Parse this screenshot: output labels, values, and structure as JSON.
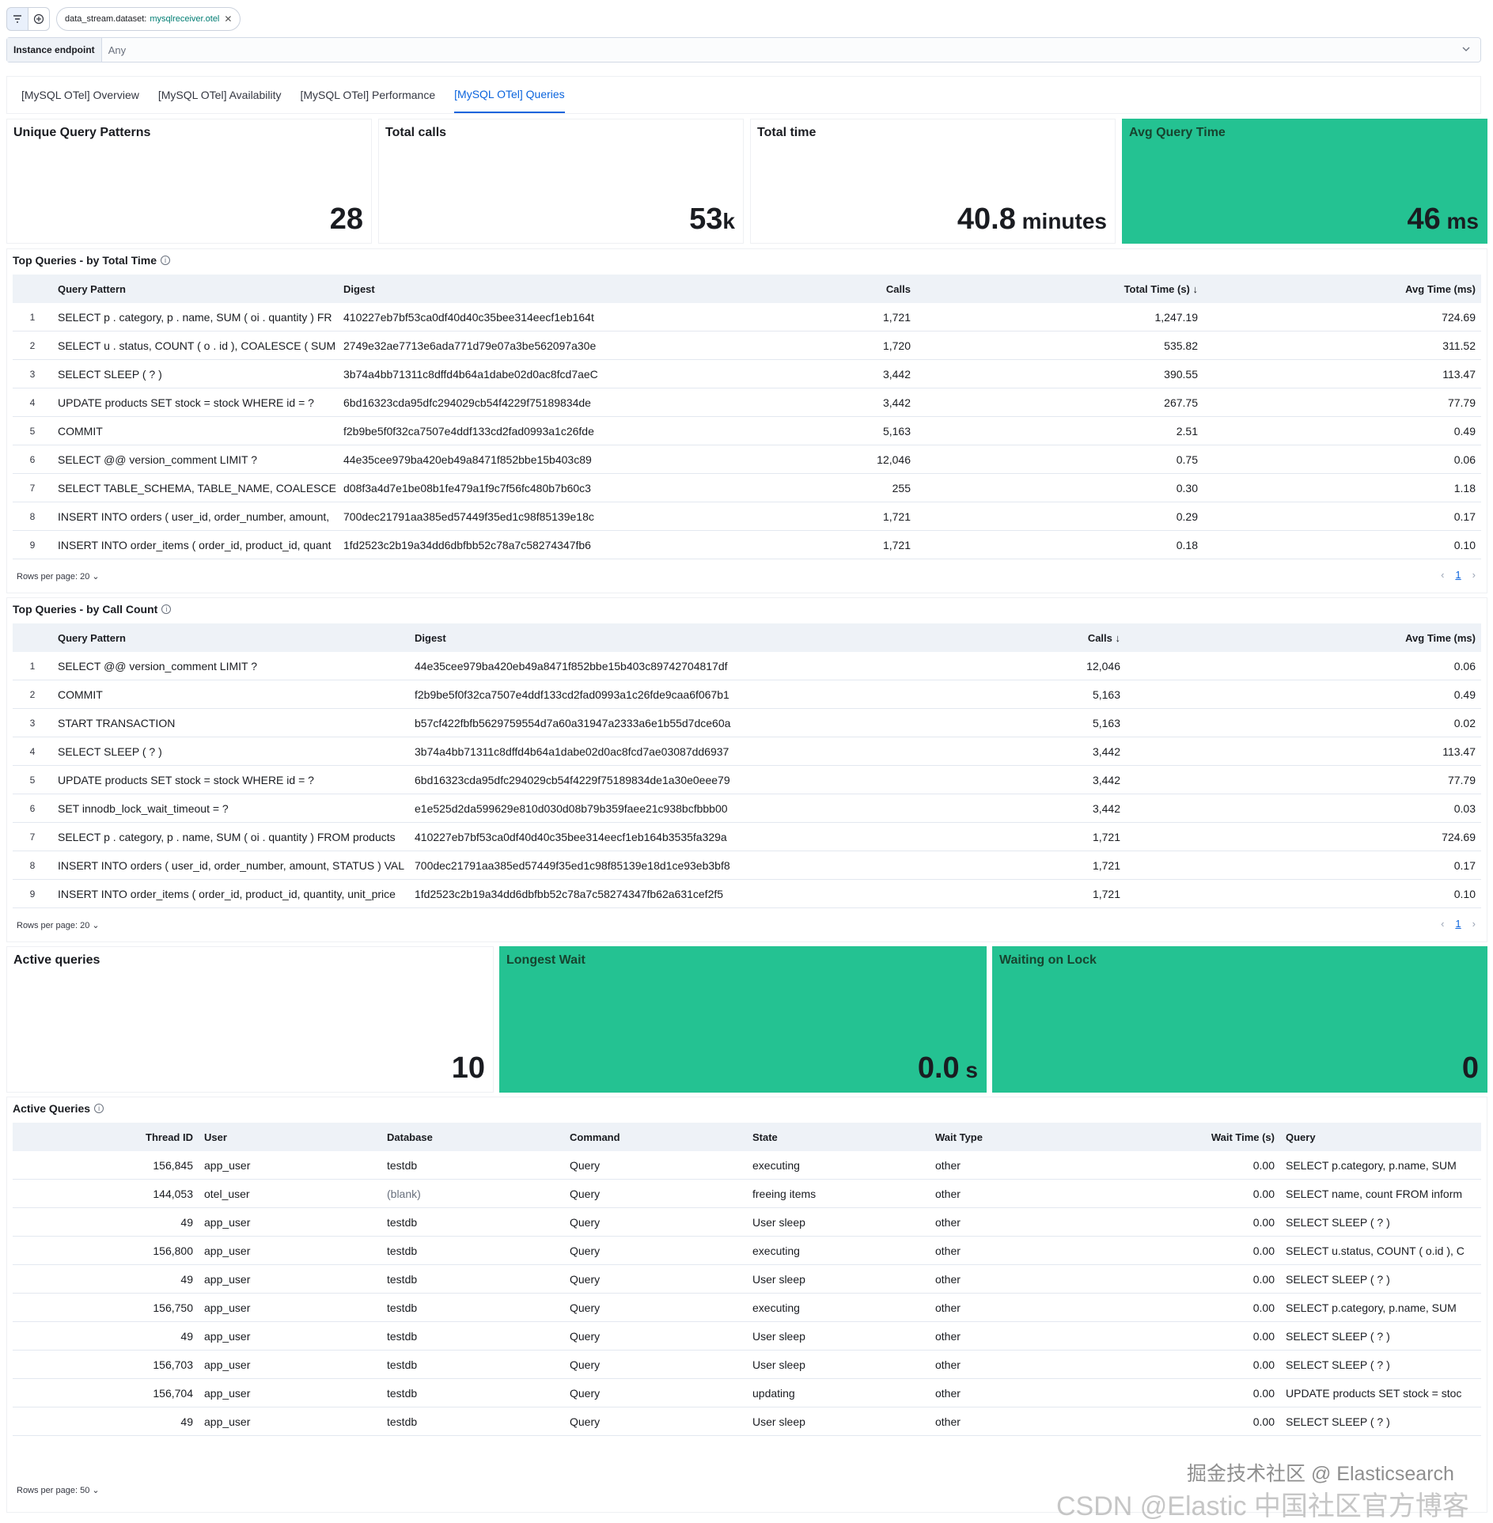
{
  "filter_bar": {
    "filter_key": "data_stream.dataset:",
    "filter_value": "mysqlreceiver.otel"
  },
  "control": {
    "label": "Instance endpoint",
    "value": "Any"
  },
  "tabs": [
    {
      "label": "[MySQL OTel] Overview"
    },
    {
      "label": "[MySQL OTel] Availability"
    },
    {
      "label": "[MySQL OTel] Performance"
    },
    {
      "label": "[MySQL OTel] Queries",
      "active": true
    }
  ],
  "metrics": {
    "unique_patterns": {
      "title": "Unique Query Patterns",
      "value": "28",
      "unit": ""
    },
    "total_calls": {
      "title": "Total calls",
      "value": "53",
      "unit": "k"
    },
    "total_time": {
      "title": "Total time",
      "value": "40.8",
      "unit": " minutes"
    },
    "avg_time": {
      "title": "Avg Query Time",
      "value": "46",
      "unit": " ms",
      "color": "#24c292"
    }
  },
  "top_by_time": {
    "title": "Top Queries - by Total Time",
    "columns": [
      "Query Pattern",
      "Digest",
      "Calls",
      "Total Time (s) ↓",
      "Avg Time (ms)"
    ],
    "rows": [
      {
        "n": "1",
        "pattern": "SELECT p . category, p . name, SUM ( oi . quantity ) FR",
        "digest": "410227eb7bf53ca0df40d40c35bee314eecf1eb164t",
        "calls": "1,721",
        "total": "1,247.19",
        "avg": "724.69"
      },
      {
        "n": "2",
        "pattern": "SELECT u . status, COUNT ( o . id ), COALESCE ( SUM",
        "digest": "2749e32ae7713e6ada771d79e07a3be562097a30e",
        "calls": "1,720",
        "total": "535.82",
        "avg": "311.52"
      },
      {
        "n": "3",
        "pattern": "SELECT SLEEP ( ? )",
        "digest": "3b74a4bb71311c8dffd4b64a1dabe02d0ac8fcd7aeC",
        "calls": "3,442",
        "total": "390.55",
        "avg": "113.47"
      },
      {
        "n": "4",
        "pattern": "UPDATE products SET stock = stock WHERE id = ?",
        "digest": "6bd16323cda95dfc294029cb54f4229f75189834de",
        "calls": "3,442",
        "total": "267.75",
        "avg": "77.79"
      },
      {
        "n": "5",
        "pattern": "COMMIT",
        "digest": "f2b9be5f0f32ca7507e4ddf133cd2fad0993a1c26fde",
        "calls": "5,163",
        "total": "2.51",
        "avg": "0.49"
      },
      {
        "n": "6",
        "pattern": "SELECT @@ version_comment LIMIT ?",
        "digest": "44e35cee979ba420eb49a8471f852bbe15b403c89",
        "calls": "12,046",
        "total": "0.75",
        "avg": "0.06"
      },
      {
        "n": "7",
        "pattern": "SELECT TABLE_SCHEMA, TABLE_NAME, COALESCE ( `",
        "digest": "d08f3a4d7e1be08b1fe479a1f9c7f56fc480b7b60c3",
        "calls": "255",
        "total": "0.30",
        "avg": "1.18"
      },
      {
        "n": "8",
        "pattern": "INSERT INTO orders ( user_id, order_number, amount,",
        "digest": "700dec21791aa385ed57449f35ed1c98f85139e18c",
        "calls": "1,721",
        "total": "0.29",
        "avg": "0.17"
      },
      {
        "n": "9",
        "pattern": "INSERT INTO order_items ( order_id, product_id, quant",
        "digest": "1fd2523c2b19a34dd6dbfbb52c78a7c58274347fb6",
        "calls": "1,721",
        "total": "0.18",
        "avg": "0.10"
      }
    ],
    "rows_per_page": "Rows per page: 20",
    "page": "1"
  },
  "top_by_count": {
    "title": "Top Queries - by Call Count",
    "columns": [
      "Query Pattern",
      "Digest",
      "Calls ↓",
      "Avg Time (ms)"
    ],
    "rows": [
      {
        "n": "1",
        "pattern": "SELECT @@ version_comment LIMIT ?",
        "digest": "44e35cee979ba420eb49a8471f852bbe15b403c89742704817df",
        "calls": "12,046",
        "avg": "0.06"
      },
      {
        "n": "2",
        "pattern": "COMMIT",
        "digest": "f2b9be5f0f32ca7507e4ddf133cd2fad0993a1c26fde9caa6f067b1",
        "calls": "5,163",
        "avg": "0.49"
      },
      {
        "n": "3",
        "pattern": "START TRANSACTION",
        "digest": "b57cf422fbfb5629759554d7a60a31947a2333a6e1b55d7dce60a",
        "calls": "5,163",
        "avg": "0.02"
      },
      {
        "n": "4",
        "pattern": "SELECT SLEEP ( ? )",
        "digest": "3b74a4bb71311c8dffd4b64a1dabe02d0ac8fcd7ae03087dd6937",
        "calls": "3,442",
        "avg": "113.47"
      },
      {
        "n": "5",
        "pattern": "UPDATE products SET stock = stock WHERE id = ?",
        "digest": "6bd16323cda95dfc294029cb54f4229f75189834de1a30e0eee79",
        "calls": "3,442",
        "avg": "77.79"
      },
      {
        "n": "6",
        "pattern": "SET innodb_lock_wait_timeout = ?",
        "digest": "e1e525d2da599629e810d030d08b79b359faee21c938bcfbbb00",
        "calls": "3,442",
        "avg": "0.03"
      },
      {
        "n": "7",
        "pattern": "SELECT p . category, p . name, SUM ( oi . quantity ) FROM products",
        "digest": "410227eb7bf53ca0df40d40c35bee314eecf1eb164b3535fa329a",
        "calls": "1,721",
        "avg": "724.69"
      },
      {
        "n": "8",
        "pattern": "INSERT INTO orders ( user_id, order_number, amount, STATUS ) VAL",
        "digest": "700dec21791aa385ed57449f35ed1c98f85139e18d1ce93eb3bf8",
        "calls": "1,721",
        "avg": "0.17"
      },
      {
        "n": "9",
        "pattern": "INSERT INTO order_items ( order_id, product_id, quantity, unit_price",
        "digest": "1fd2523c2b19a34dd6dbfbb52c78a7c58274347fb62a631cef2f5",
        "calls": "1,721",
        "avg": "0.10"
      }
    ],
    "rows_per_page": "Rows per page: 20",
    "page": "1"
  },
  "active_metrics": {
    "active": {
      "title": "Active queries",
      "value": "10",
      "unit": ""
    },
    "longest_wait": {
      "title": "Longest Wait",
      "value": "0.0",
      "unit": " s",
      "color": "#24c292"
    },
    "waiting_lock": {
      "title": "Waiting on Lock",
      "value": "0",
      "unit": "",
      "color": "#24c292"
    }
  },
  "active_table": {
    "title": "Active Queries",
    "columns": [
      "Thread ID",
      "User",
      "Database",
      "Command",
      "State",
      "Wait Type",
      "Wait Time (s)",
      "Query"
    ],
    "rows": [
      {
        "tid": "156,845",
        "user": "app_user",
        "db": "testdb",
        "cmd": "Query",
        "state": "executing",
        "wtype": "other",
        "wtime": "0.00",
        "query": "SELECT p.category, p.name, SUM"
      },
      {
        "tid": "144,053",
        "user": "otel_user",
        "db": "(blank)",
        "cmd": "Query",
        "state": "freeing items",
        "wtype": "other",
        "wtime": "0.00",
        "query": "SELECT name, count FROM inform"
      },
      {
        "tid": "49",
        "user": "app_user",
        "db": "testdb",
        "cmd": "Query",
        "state": "User sleep",
        "wtype": "other",
        "wtime": "0.00",
        "query": "SELECT SLEEP ( ? )"
      },
      {
        "tid": "156,800",
        "user": "app_user",
        "db": "testdb",
        "cmd": "Query",
        "state": "executing",
        "wtype": "other",
        "wtime": "0.00",
        "query": "SELECT u.status, COUNT ( o.id ), C"
      },
      {
        "tid": "49",
        "user": "app_user",
        "db": "testdb",
        "cmd": "Query",
        "state": "User sleep",
        "wtype": "other",
        "wtime": "0.00",
        "query": "SELECT SLEEP ( ? )"
      },
      {
        "tid": "156,750",
        "user": "app_user",
        "db": "testdb",
        "cmd": "Query",
        "state": "executing",
        "wtype": "other",
        "wtime": "0.00",
        "query": "SELECT p.category, p.name, SUM"
      },
      {
        "tid": "49",
        "user": "app_user",
        "db": "testdb",
        "cmd": "Query",
        "state": "User sleep",
        "wtype": "other",
        "wtime": "0.00",
        "query": "SELECT SLEEP ( ? )"
      },
      {
        "tid": "156,703",
        "user": "app_user",
        "db": "testdb",
        "cmd": "Query",
        "state": "User sleep",
        "wtype": "other",
        "wtime": "0.00",
        "query": "SELECT SLEEP ( ? )"
      },
      {
        "tid": "156,704",
        "user": "app_user",
        "db": "testdb",
        "cmd": "Query",
        "state": "updating",
        "wtype": "other",
        "wtime": "0.00",
        "query": "UPDATE products SET stock = stoc"
      },
      {
        "tid": "49",
        "user": "app_user",
        "db": "testdb",
        "cmd": "Query",
        "state": "User sleep",
        "wtype": "other",
        "wtime": "0.00",
        "query": "SELECT SLEEP ( ? )"
      }
    ],
    "rows_per_page": "Rows per page: 50"
  },
  "watermark": {
    "line1": "掘金技术社区 @ Elasticsearch",
    "line2": "CSDN @Elastic 中国社区官方博客"
  }
}
